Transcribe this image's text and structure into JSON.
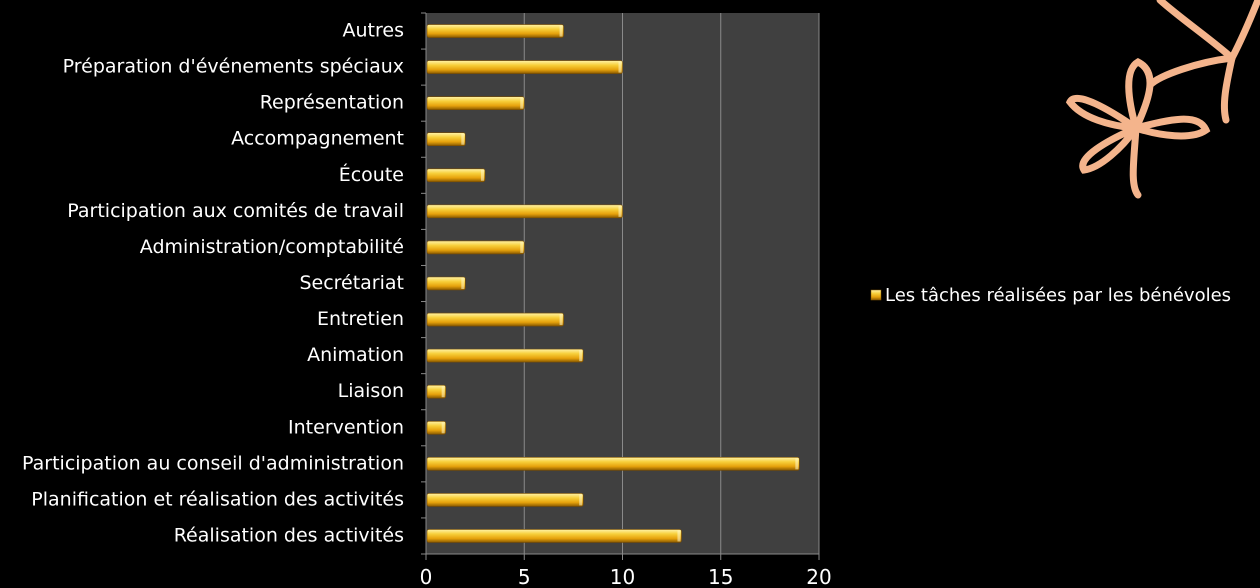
{
  "chart_data": {
    "type": "bar",
    "orientation": "horizontal",
    "categories": [
      "Autres",
      "Préparation d'événements spéciaux",
      "Représentation",
      "Accompagnement",
      "Écoute",
      "Participation aux comités de travail",
      "Administration/comptabilité",
      "Secrétariat",
      "Entretien",
      "Animation",
      "Liaison",
      "Intervention",
      "Participation au conseil d'administration",
      "Planification et réalisation des activités",
      "Réalisation des activités"
    ],
    "series": [
      {
        "name": "Les tâches réalisées par les bénévoles",
        "values": [
          7,
          10,
          5,
          2,
          3,
          10,
          5,
          2,
          7,
          8,
          1,
          1,
          19,
          8,
          13
        ]
      }
    ],
    "xlim": [
      0,
      20
    ],
    "xticks": [
      "0",
      "5",
      "10",
      "15",
      "20"
    ],
    "grid": true,
    "legend_position": "right",
    "colors": {
      "background": "#000000",
      "plot_area": "#404040",
      "grid": "#8a8a8a",
      "bar_light": "#fff3a8",
      "bar_mid": "#f2b411",
      "bar_dark": "#8a5a00",
      "decoration": "#f4b48c"
    }
  }
}
